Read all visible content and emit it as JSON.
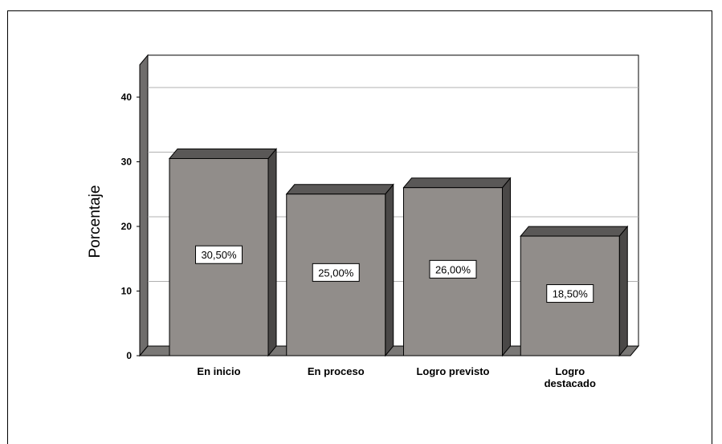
{
  "chart_data": {
    "type": "bar",
    "categories": [
      "En inicio",
      "En proceso",
      "Logro previsto",
      "Logro destacado"
    ],
    "category_lines": [
      [
        "En inicio"
      ],
      [
        "En proceso"
      ],
      [
        "Logro previsto"
      ],
      [
        "Logro",
        "destacado"
      ]
    ],
    "values": [
      30.5,
      25.0,
      26.0,
      18.5
    ],
    "data_labels": [
      "30,50%",
      "25,00%",
      "26,00%",
      "18,50%"
    ],
    "ylabel": "Porcentaje",
    "xlabel": "",
    "title": "",
    "ylim": [
      0,
      45
    ],
    "yticks": [
      0,
      10,
      20,
      30,
      40
    ],
    "grid": true,
    "style": "3d",
    "colors": {
      "bar_front": "#918d8a",
      "bar_top": "#5a5857",
      "bar_side": "#4a4847",
      "floor": "#7a7876",
      "wall": "#6f6d6c",
      "grid": "#b0b0b0"
    }
  }
}
